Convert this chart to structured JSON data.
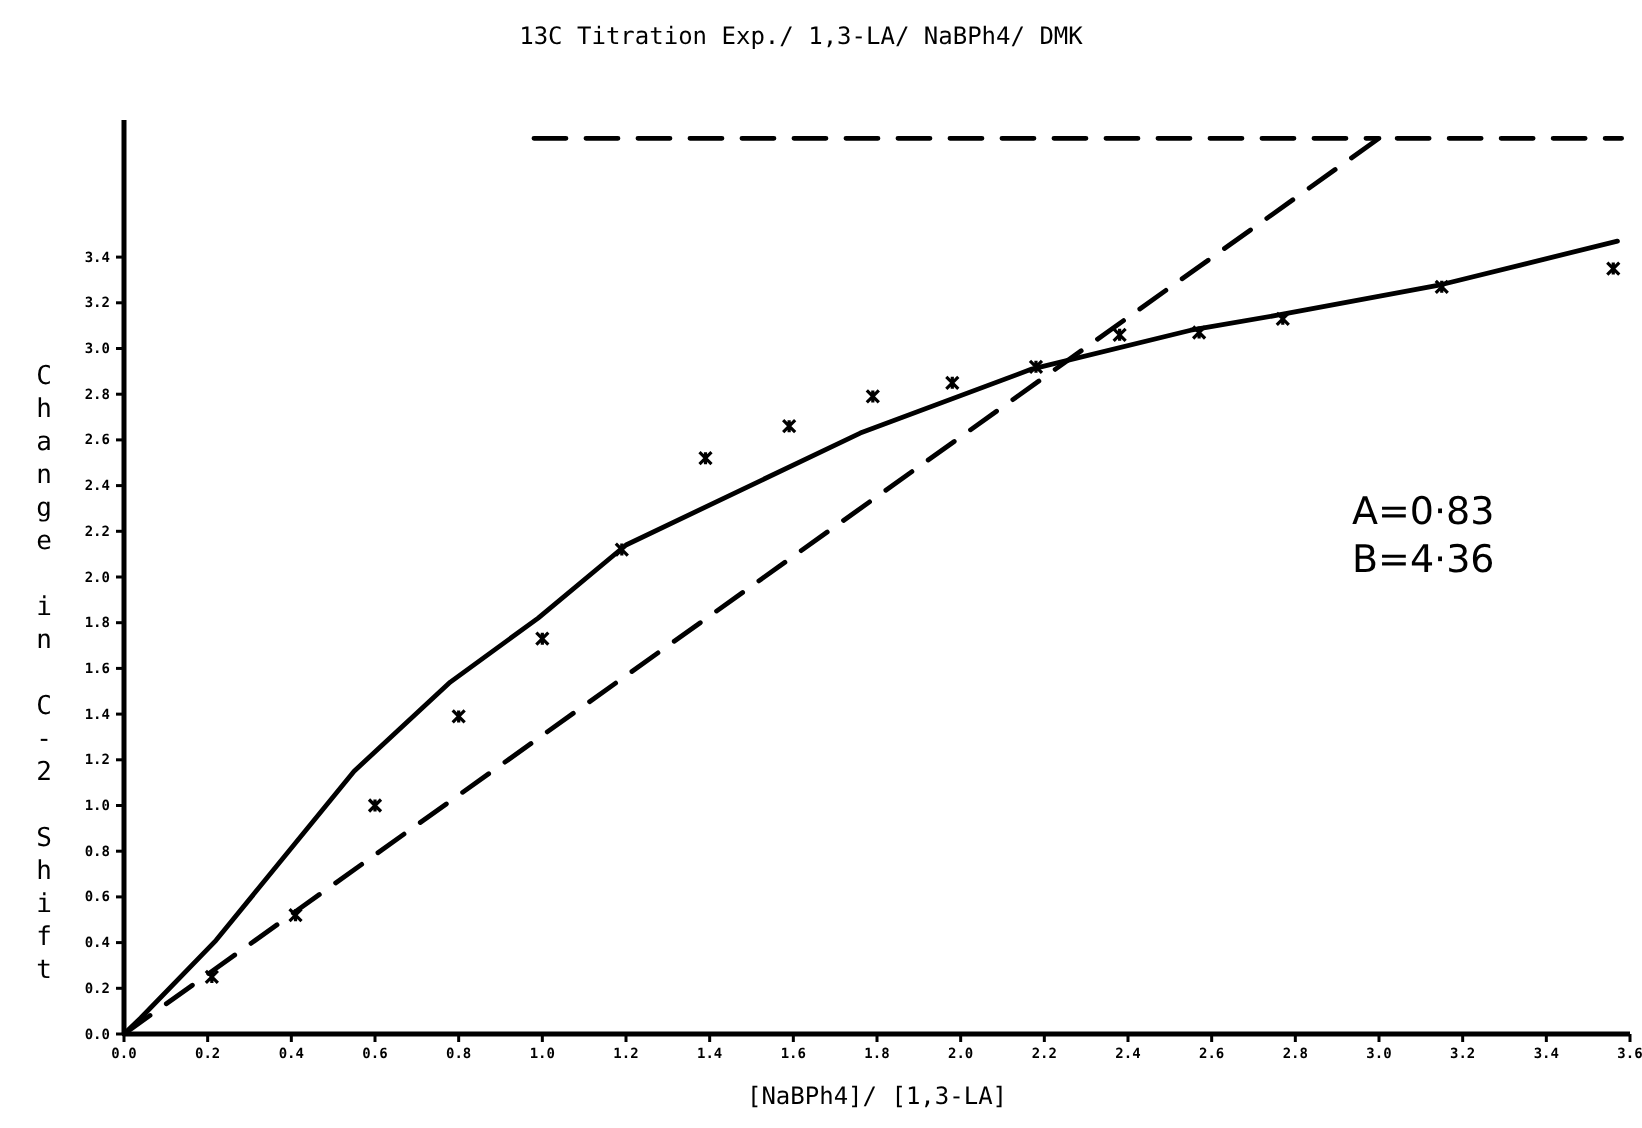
{
  "chart_data": {
    "type": "scatter",
    "title": "13C Titration Exp./ 1,3-LA/ NaBPh4/ DMK",
    "xlabel": "[NaBPh4]/ [1,3-LA]",
    "ylabel": "Change in C-2 Shift",
    "annotations": [
      "A=0·83",
      "B=4·36"
    ],
    "marker": "cross",
    "grid": false,
    "xlim": [
      0,
      3.6
    ],
    "ylim": [
      0,
      4.0
    ],
    "xticks": [
      {
        "value": 0,
        "label": "0.0"
      },
      0.2,
      0.4,
      0.6,
      0.8,
      {
        "value": 1,
        "label": "1.0"
      },
      1.2,
      1.4,
      1.6,
      1.8,
      {
        "value": 2,
        "label": "2.0"
      },
      2.2,
      2.4,
      2.6,
      2.8,
      {
        "value": 3,
        "label": "3.0"
      },
      3.2,
      3.4,
      3.6
    ],
    "yticks": [
      {
        "value": 0,
        "label": "0.0"
      },
      0.2,
      0.4,
      0.6,
      0.8,
      {
        "value": 1,
        "label": "1.0"
      },
      1.2,
      1.4,
      1.6,
      1.8,
      {
        "value": 2,
        "label": "2.0"
      },
      2.2,
      2.4,
      2.6,
      2.8,
      {
        "value": 3,
        "label": "3.0"
      },
      3.2,
      3.4
    ],
    "series": [
      {
        "color": "#000000",
        "x": [
          0.21,
          0.41,
          0.6,
          0.8,
          1.0,
          1.19,
          1.39,
          1.59,
          1.79,
          1.98,
          2.18,
          2.38,
          2.57,
          2.77,
          3.15,
          3.56
        ],
        "values": [
          0.25,
          0.52,
          1.0,
          1.39,
          1.73,
          2.12,
          2.52,
          2.66,
          2.79,
          2.85,
          2.92,
          3.06,
          3.07,
          3.13,
          3.27,
          3.35
        ]
      },
      {
        "type": "line",
        "color": "#000000",
        "line_style": "solid",
        "marker": "none",
        "x": [
          0,
          0.04,
          0.22,
          0.55,
          0.78,
          0.99,
          1.2,
          1.76,
          2.17,
          2.55,
          2.77,
          3.15,
          3.57
        ],
        "values": [
          0,
          0.07,
          0.41,
          1.15,
          1.54,
          1.82,
          2.14,
          2.63,
          2.91,
          3.08,
          3.15,
          3.28,
          3.47
        ]
      },
      {
        "type": "line",
        "color": "#000000",
        "line_style": "dashed",
        "marker": "none",
        "x": [
          0,
          3.0,
          3.58
        ],
        "values": [
          0,
          3.92,
          3.92
        ]
      },
      {
        "type": "line",
        "color": "#000000",
        "line_style": "dashed",
        "marker": "none",
        "x": [
          0.98,
          3.0
        ],
        "values": [
          3.92,
          3.92
        ]
      }
    ]
  }
}
